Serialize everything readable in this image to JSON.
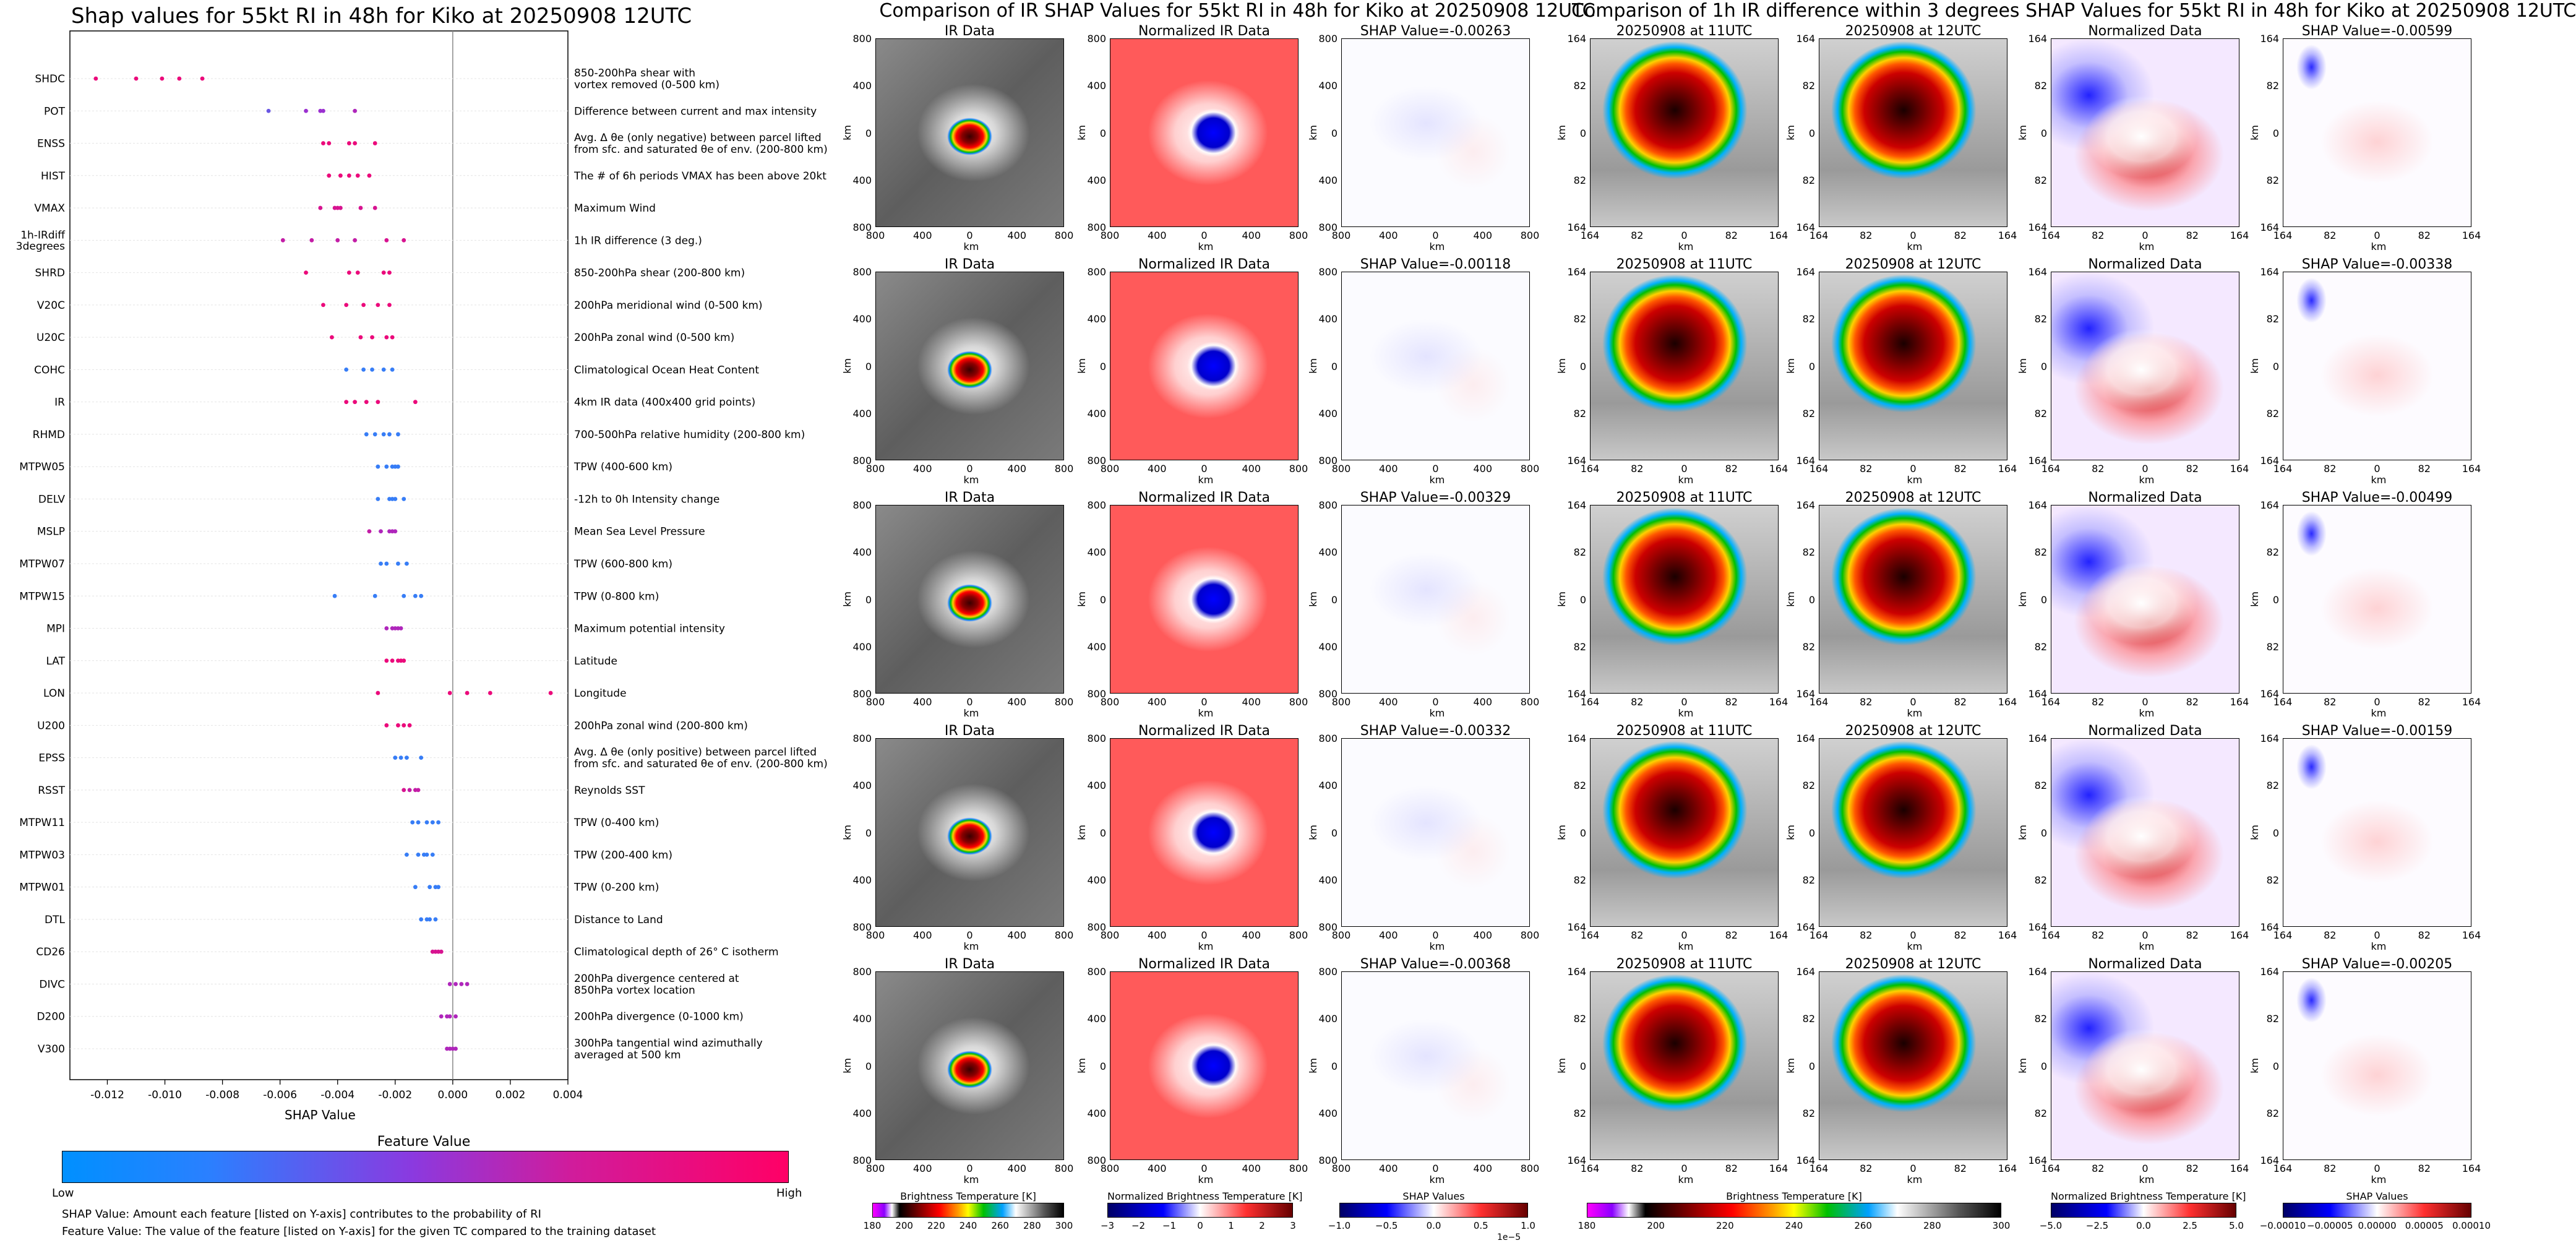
{
  "shap_panel": {
    "title": "Shap values for 55kt RI in 48h for Kiko at 20250908 12UTC",
    "xlabel": "SHAP Value",
    "xticks": [
      "-0.012",
      "-0.010",
      "-0.008",
      "-0.006",
      "-0.004",
      "-0.002",
      "0.000",
      "0.002",
      "0.004"
    ],
    "colorbar_title": "Feature Value",
    "colorbar_low": "Low",
    "colorbar_high": "High",
    "note1": "SHAP Value: Amount each feature [listed on Y-axis] contributes to the probability of RI",
    "note2": "Feature Value: The value of the feature [listed on Y-axis] for the given TC compared to the training dataset",
    "colors": {
      "low": "#1e90ff",
      "mid": "#9b30d0",
      "high": "#ff0066"
    }
  },
  "chart_data": {
    "type": "scatter",
    "title": "Shap values for 55kt RI in 48h for Kiko at 20250908 12UTC",
    "xlabel": "SHAP Value",
    "xlim": [
      -0.0133,
      0.004
    ],
    "features": [
      {
        "name": "SHDC",
        "desc": [
          "850-200hPa shear with",
          "vortex removed (0-500 km)"
        ],
        "points": [
          [
            -0.0124,
            0.9
          ],
          [
            -0.011,
            0.9
          ],
          [
            -0.0101,
            0.9
          ],
          [
            -0.0095,
            0.9
          ],
          [
            -0.0087,
            0.9
          ]
        ]
      },
      {
        "name": "POT",
        "desc": [
          "Difference between current and max intensity"
        ],
        "points": [
          [
            -0.0064,
            0.3
          ],
          [
            -0.0051,
            0.5
          ],
          [
            -0.0046,
            0.5
          ],
          [
            -0.0045,
            0.5
          ],
          [
            -0.0034,
            0.6
          ]
        ]
      },
      {
        "name": "ENSS",
        "desc": [
          "Avg. Δ θe (only negative) between parcel lifted",
          "from sfc. and saturated θe of env. (200-800 km)"
        ],
        "points": [
          [
            -0.0045,
            0.9
          ],
          [
            -0.0043,
            0.9
          ],
          [
            -0.0036,
            0.9
          ],
          [
            -0.0034,
            0.9
          ],
          [
            -0.0027,
            0.9
          ]
        ]
      },
      {
        "name": "HIST",
        "desc": [
          "The # of 6h periods VMAX has been above 20kt"
        ],
        "points": [
          [
            -0.0043,
            0.9
          ],
          [
            -0.0039,
            0.9
          ],
          [
            -0.0036,
            0.9
          ],
          [
            -0.0033,
            0.9
          ],
          [
            -0.0029,
            0.9
          ]
        ]
      },
      {
        "name": "VMAX",
        "desc": [
          "Maximum Wind"
        ],
        "points": [
          [
            -0.0046,
            0.8
          ],
          [
            -0.0041,
            0.8
          ],
          [
            -0.004,
            0.8
          ],
          [
            -0.0039,
            0.8
          ],
          [
            -0.0032,
            0.8
          ],
          [
            -0.0027,
            0.8
          ]
        ]
      },
      {
        "name": "1h-IRdiff\n3degrees",
        "desc": [
          "1h IR difference (3 deg.)"
        ],
        "points": [
          [
            -0.0059,
            0.7
          ],
          [
            -0.0049,
            0.7
          ],
          [
            -0.004,
            0.7
          ],
          [
            -0.0034,
            0.7
          ],
          [
            -0.0023,
            0.8
          ],
          [
            -0.0017,
            0.8
          ]
        ]
      },
      {
        "name": "SHRD",
        "desc": [
          "850-200hPa shear (200-800 km)"
        ],
        "points": [
          [
            -0.0051,
            0.9
          ],
          [
            -0.0036,
            0.9
          ],
          [
            -0.0033,
            0.9
          ],
          [
            -0.0024,
            0.9
          ],
          [
            -0.0022,
            0.9
          ]
        ]
      },
      {
        "name": "V20C",
        "desc": [
          "200hPa meridional wind (0-500 km)"
        ],
        "points": [
          [
            -0.0045,
            0.9
          ],
          [
            -0.0037,
            0.9
          ],
          [
            -0.0031,
            0.9
          ],
          [
            -0.0026,
            0.9
          ],
          [
            -0.0022,
            0.9
          ]
        ]
      },
      {
        "name": "U20C",
        "desc": [
          "200hPa zonal wind (0-500 km)"
        ],
        "points": [
          [
            -0.0042,
            0.9
          ],
          [
            -0.0032,
            0.9
          ],
          [
            -0.0028,
            0.9
          ],
          [
            -0.0023,
            0.9
          ],
          [
            -0.0021,
            0.9
          ]
        ]
      },
      {
        "name": "COHC",
        "desc": [
          "Climatological Ocean Heat Content"
        ],
        "points": [
          [
            -0.0037,
            0.1
          ],
          [
            -0.0031,
            0.1
          ],
          [
            -0.0028,
            0.1
          ],
          [
            -0.0024,
            0.1
          ],
          [
            -0.0021,
            0.1
          ]
        ]
      },
      {
        "name": "IR",
        "desc": [
          "4km IR data (400x400 grid points)"
        ],
        "points": [
          [
            -0.0037,
            0.9
          ],
          [
            -0.0034,
            0.9
          ],
          [
            -0.003,
            0.9
          ],
          [
            -0.0026,
            0.9
          ],
          [
            -0.0013,
            0.9
          ]
        ]
      },
      {
        "name": "RHMD",
        "desc": [
          "700-500hPa relative humidity (200-800 km)"
        ],
        "points": [
          [
            -0.003,
            0.1
          ],
          [
            -0.0027,
            0.1
          ],
          [
            -0.0024,
            0.1
          ],
          [
            -0.0022,
            0.1
          ],
          [
            -0.0019,
            0.1
          ]
        ]
      },
      {
        "name": "MTPW05",
        "desc": [
          "TPW (400-600 km)"
        ],
        "points": [
          [
            -0.0026,
            0.1
          ],
          [
            -0.0023,
            0.1
          ],
          [
            -0.0021,
            0.1
          ],
          [
            -0.002,
            0.1
          ],
          [
            -0.0019,
            0.1
          ]
        ]
      },
      {
        "name": "DELV",
        "desc": [
          "-12h to 0h Intensity change"
        ],
        "points": [
          [
            -0.0026,
            0.1
          ],
          [
            -0.0022,
            0.1
          ],
          [
            -0.0021,
            0.1
          ],
          [
            -0.002,
            0.1
          ],
          [
            -0.0017,
            0.1
          ]
        ]
      },
      {
        "name": "MSLP",
        "desc": [
          "Mean Sea Level Pressure"
        ],
        "points": [
          [
            -0.0029,
            0.7
          ],
          [
            -0.0025,
            0.6
          ],
          [
            -0.0022,
            0.6
          ],
          [
            -0.0021,
            0.6
          ],
          [
            -0.002,
            0.6
          ]
        ]
      },
      {
        "name": "MTPW07",
        "desc": [
          "TPW (600-800 km)"
        ],
        "points": [
          [
            -0.0025,
            0.1
          ],
          [
            -0.0023,
            0.1
          ],
          [
            -0.0019,
            0.1
          ],
          [
            -0.0016,
            0.1
          ]
        ]
      },
      {
        "name": "MTPW15",
        "desc": [
          "TPW (0-800 km)"
        ],
        "points": [
          [
            -0.0041,
            0.1
          ],
          [
            -0.0027,
            0.1
          ],
          [
            -0.0017,
            0.1
          ],
          [
            -0.0013,
            0.1
          ],
          [
            -0.0011,
            0.1
          ]
        ]
      },
      {
        "name": "MPI",
        "desc": [
          "Maximum potential intensity"
        ],
        "points": [
          [
            -0.0023,
            0.6
          ],
          [
            -0.0021,
            0.6
          ],
          [
            -0.002,
            0.6
          ],
          [
            -0.0019,
            0.6
          ],
          [
            -0.0018,
            0.6
          ]
        ]
      },
      {
        "name": "LAT",
        "desc": [
          "Latitude"
        ],
        "points": [
          [
            -0.0023,
            0.9
          ],
          [
            -0.0021,
            0.9
          ],
          [
            -0.0019,
            0.9
          ],
          [
            -0.0018,
            0.9
          ],
          [
            -0.0017,
            0.9
          ]
        ]
      },
      {
        "name": "LON",
        "desc": [
          "Longitude"
        ],
        "points": [
          [
            -0.0026,
            0.9
          ],
          [
            -0.0001,
            0.9
          ],
          [
            0.0005,
            0.9
          ],
          [
            0.0013,
            0.9
          ],
          [
            0.0034,
            0.9
          ]
        ]
      },
      {
        "name": "U200",
        "desc": [
          "200hPa zonal wind (200-800 km)"
        ],
        "points": [
          [
            -0.0023,
            0.9
          ],
          [
            -0.0019,
            0.9
          ],
          [
            -0.0017,
            0.9
          ],
          [
            -0.0015,
            0.9
          ]
        ]
      },
      {
        "name": "EPSS",
        "desc": [
          "Avg. Δ θe (only positive) between parcel lifted",
          "from sfc. and saturated θe of env. (200-800 km)"
        ],
        "points": [
          [
            -0.002,
            0.1
          ],
          [
            -0.0018,
            0.1
          ],
          [
            -0.0016,
            0.1
          ],
          [
            -0.0011,
            0.1
          ]
        ]
      },
      {
        "name": "RSST",
        "desc": [
          "Reynolds SST"
        ],
        "points": [
          [
            -0.0017,
            0.8
          ],
          [
            -0.0015,
            0.7
          ],
          [
            -0.0013,
            0.7
          ],
          [
            -0.0012,
            0.7
          ]
        ]
      },
      {
        "name": "MTPW11",
        "desc": [
          "TPW (0-400 km)"
        ],
        "points": [
          [
            -0.0014,
            0.1
          ],
          [
            -0.0012,
            0.1
          ],
          [
            -0.0009,
            0.1
          ],
          [
            -0.0007,
            0.1
          ],
          [
            -0.0005,
            0.1
          ]
        ]
      },
      {
        "name": "MTPW03",
        "desc": [
          "TPW (200-400 km)"
        ],
        "points": [
          [
            -0.0016,
            0.1
          ],
          [
            -0.0012,
            0.1
          ],
          [
            -0.001,
            0.1
          ],
          [
            -0.0009,
            0.1
          ],
          [
            -0.0007,
            0.1
          ]
        ]
      },
      {
        "name": "MTPW01",
        "desc": [
          "TPW (0-200 km)"
        ],
        "points": [
          [
            -0.0013,
            0.1
          ],
          [
            -0.0008,
            0.1
          ],
          [
            -0.0006,
            0.1
          ],
          [
            -0.0005,
            0.1
          ]
        ]
      },
      {
        "name": "DTL",
        "desc": [
          "Distance to Land"
        ],
        "points": [
          [
            -0.0011,
            0.1
          ],
          [
            -0.0009,
            0.1
          ],
          [
            -0.0008,
            0.1
          ],
          [
            -0.0006,
            0.1
          ]
        ]
      },
      {
        "name": "CD26",
        "desc": [
          "Climatological depth of 26° C isotherm"
        ],
        "points": [
          [
            -0.0007,
            0.8
          ],
          [
            -0.0006,
            0.8
          ],
          [
            -0.0005,
            0.8
          ],
          [
            -0.0004,
            0.8
          ]
        ]
      },
      {
        "name": "DIVC",
        "desc": [
          "200hPa divergence centered at",
          "850hPa vortex location"
        ],
        "points": [
          [
            -0.0001,
            0.6
          ],
          [
            0.0001,
            0.6
          ],
          [
            0.0003,
            0.6
          ],
          [
            0.0005,
            0.6
          ]
        ]
      },
      {
        "name": "D200",
        "desc": [
          "200hPa divergence (0-1000 km)"
        ],
        "points": [
          [
            -0.0004,
            0.6
          ],
          [
            -0.0002,
            0.6
          ],
          [
            -0.0001,
            0.6
          ],
          [
            0.0001,
            0.6
          ]
        ]
      },
      {
        "name": "V300",
        "desc": [
          "300hPa tangential wind azimuthally",
          "averaged at 500 km"
        ],
        "points": [
          [
            -0.0002,
            0.6
          ],
          [
            -0.0001,
            0.6
          ],
          [
            0.0,
            0.6
          ],
          [
            0.0001,
            0.6
          ]
        ]
      }
    ]
  },
  "ir_panel": {
    "title": "Comparison of IR SHAP Values for 55kt RI in 48h for Kiko at 20250908 12UTC",
    "col_titles": [
      "IR Data",
      "Normalized IR Data"
    ],
    "shap_titles": [
      "SHAP Value=-0.00263",
      "SHAP Value=-0.00118",
      "SHAP Value=-0.00329",
      "SHAP Value=-0.00332",
      "SHAP Value=-0.00368"
    ],
    "ylabel": "km",
    "xlabel": "km",
    "yticks": [
      "800",
      "400",
      "0",
      "400",
      "800"
    ],
    "xticks": [
      "800",
      "400",
      "0",
      "400",
      "800"
    ],
    "cb1_label": "Brightness Temperature [K]",
    "cb1_ticks": [
      "180",
      "200",
      "220",
      "240",
      "260",
      "280",
      "300"
    ],
    "cb2_label": "Normalized Brightness Temperature [K]",
    "cb2_ticks": [
      "−3",
      "−2",
      "−1",
      "0",
      "1",
      "2",
      "3"
    ],
    "cb3_label": "SHAP Values",
    "cb3_ticks": [
      "−1.0",
      "−0.5",
      "0.0",
      "0.5",
      "1.0"
    ],
    "cb3_exp": "1e−5"
  },
  "diff_panel": {
    "title": "Comparison of 1h IR difference within 3 degrees SHAP Values for 55kt RI in 48h for Kiko at 20250908 12UTC",
    "col_titles": [
      "20250908 at 11UTC",
      "20250908 at 12UTC",
      "Normalized Data"
    ],
    "shap_titles": [
      "SHAP Value=-0.00599",
      "SHAP Value=-0.00338",
      "SHAP Value=-0.00499",
      "SHAP Value=-0.00159",
      "SHAP Value=-0.00205"
    ],
    "ylabel": "km",
    "xlabel": "km",
    "yticks": [
      "164",
      "82",
      "0",
      "82",
      "164"
    ],
    "xticks": [
      "164",
      "82",
      "0",
      "82",
      "164"
    ],
    "cb1_label": "Brightness Temperature [K]",
    "cb1_ticks": [
      "180",
      "200",
      "220",
      "240",
      "260",
      "280",
      "300"
    ],
    "cb2_label": "Normalized Brightness Temperature [K]",
    "cb2_ticks": [
      "−5.0",
      "−2.5",
      "0.0",
      "2.5",
      "5.0"
    ],
    "cb3_label": "SHAP Values",
    "cb3_ticks": [
      "−0.00010",
      "−0.00005",
      "0.00000",
      "0.00005",
      "0.00010"
    ]
  }
}
